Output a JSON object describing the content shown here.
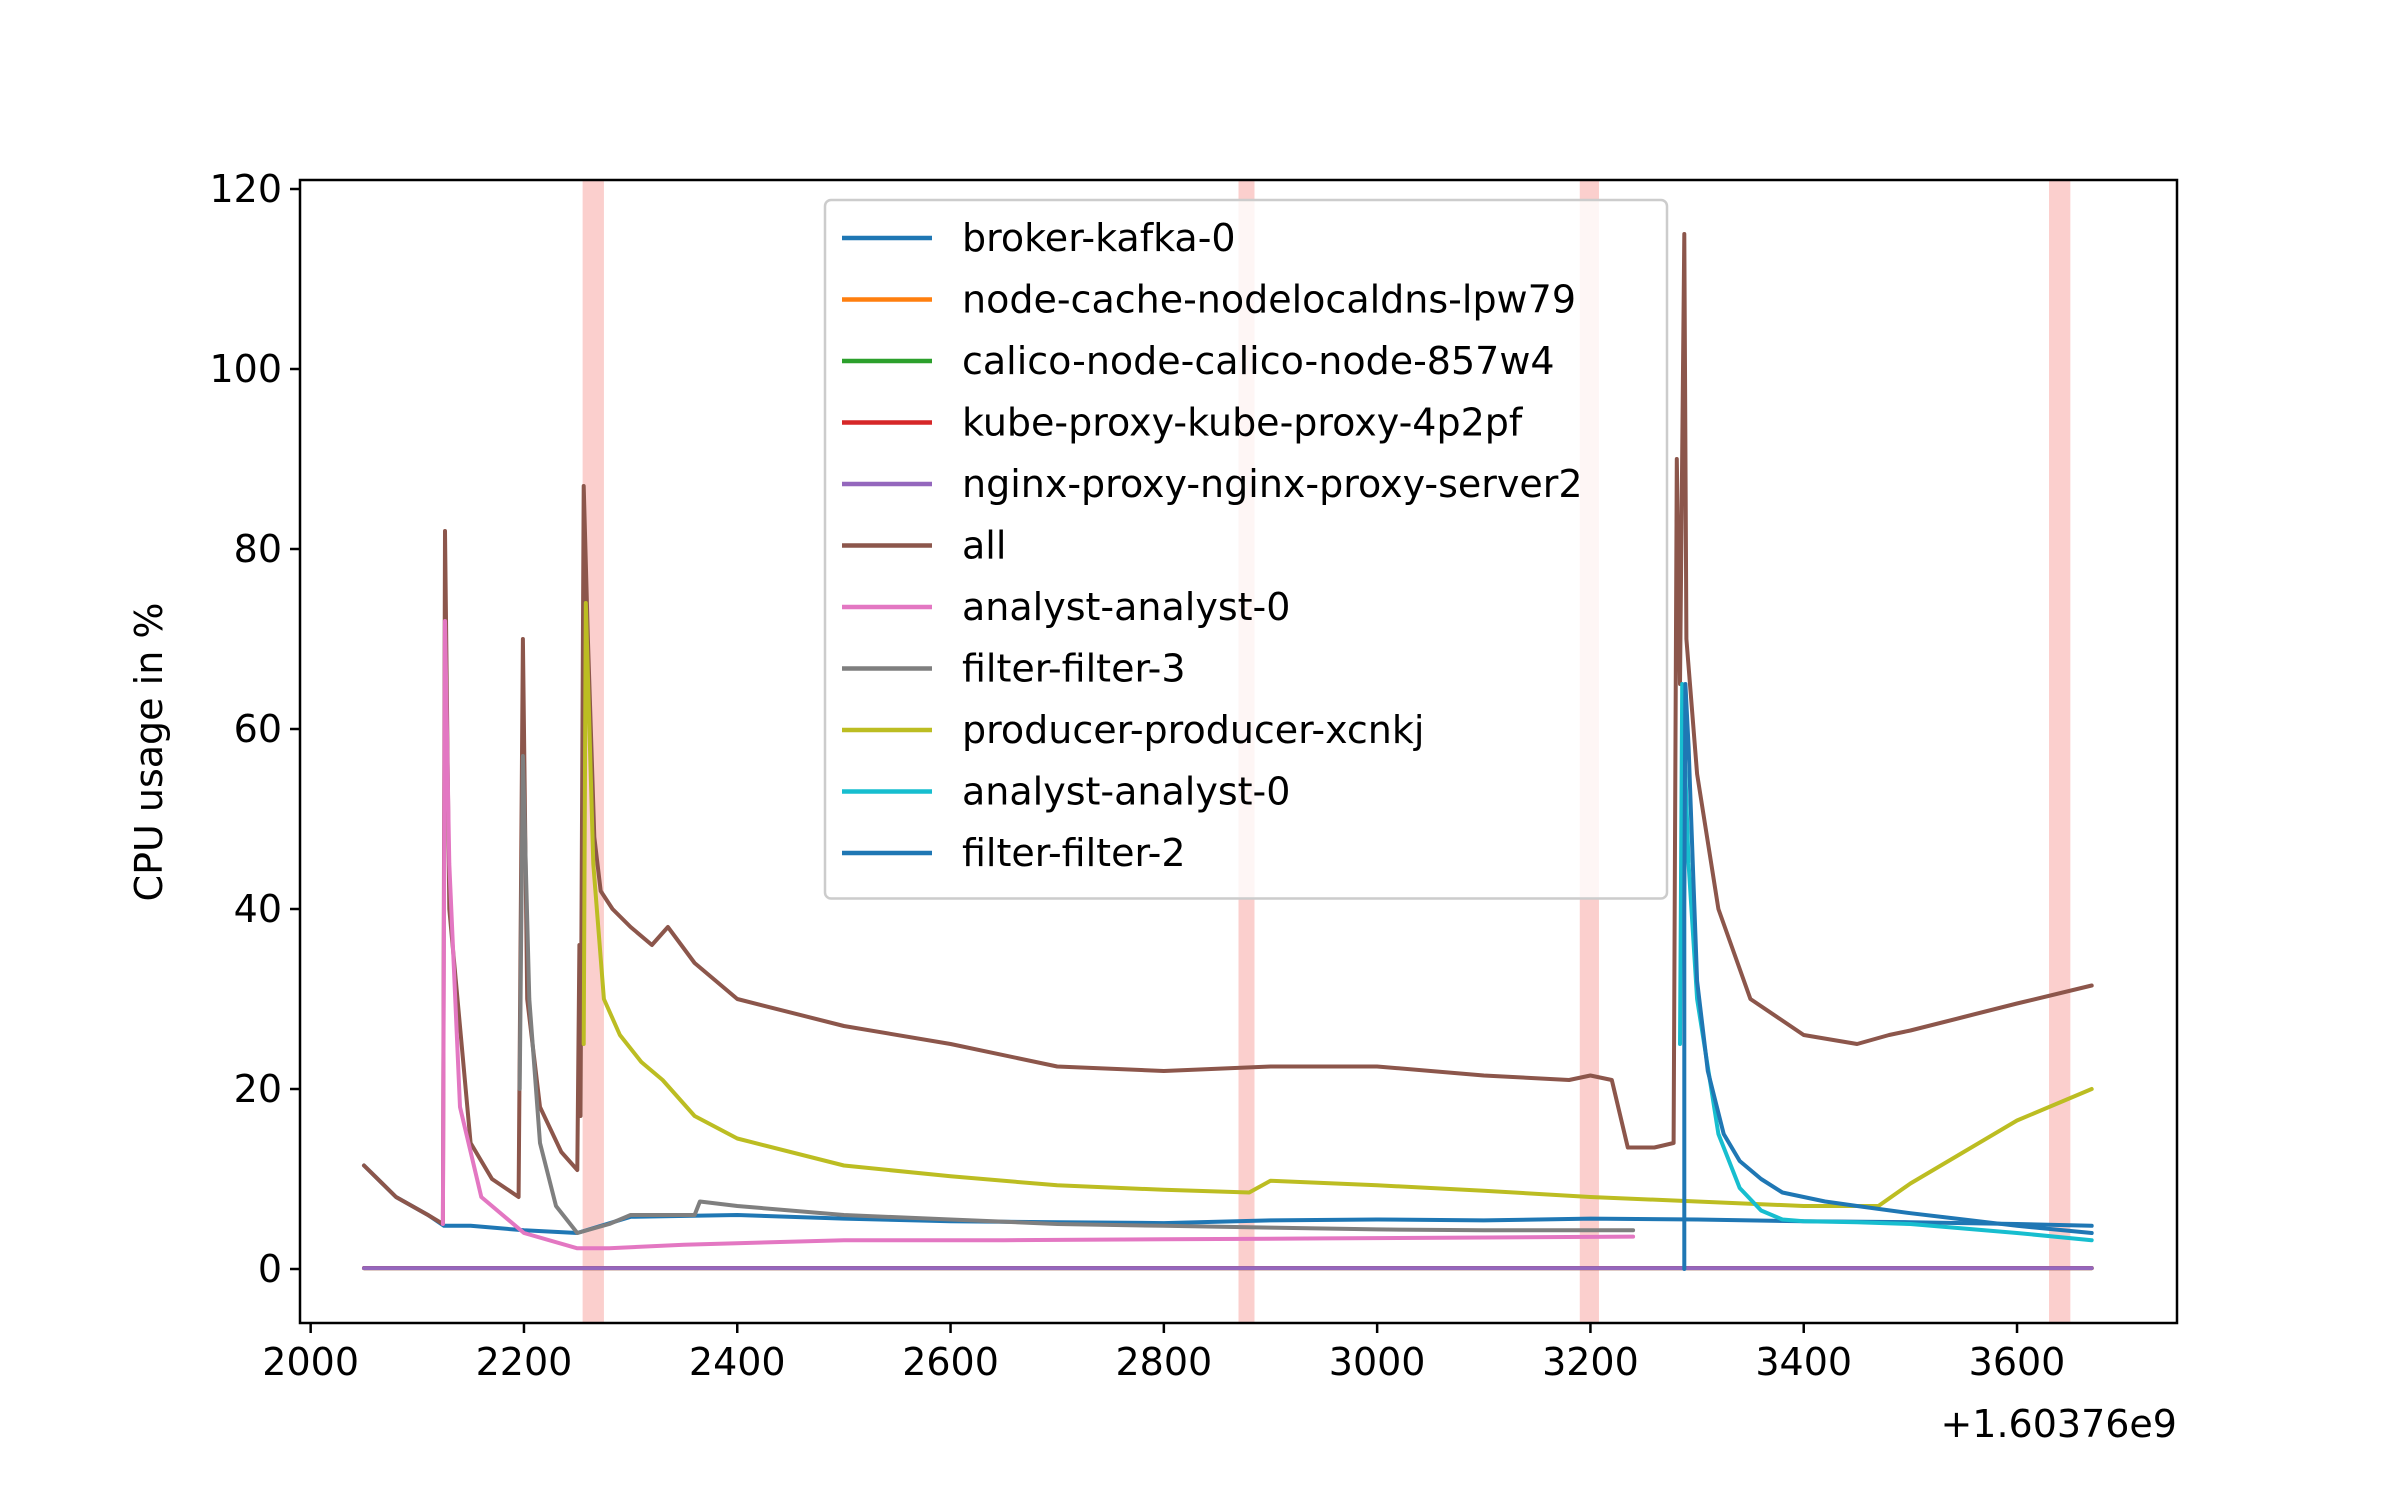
{
  "chart_data": {
    "type": "line",
    "xlabel": "",
    "ylabel": "CPU usage in %",
    "x_offset_label": "+1.60376e9",
    "xlim": [
      1990,
      3750
    ],
    "ylim": [
      -6,
      121
    ],
    "xticks": [
      2000,
      2200,
      2400,
      2600,
      2800,
      3000,
      3200,
      3400,
      3600
    ],
    "yticks": [
      0,
      20,
      40,
      60,
      80,
      100,
      120
    ],
    "grid": false,
    "legend_position": "top-center",
    "highlight_bands": [
      [
        2255,
        2275
      ],
      [
        2870,
        2885
      ],
      [
        3190,
        3208
      ],
      [
        3630,
        3650
      ]
    ],
    "highlight_color": "#f8a8a4",
    "series": [
      {
        "name": "broker-kafka-0",
        "color": "#1f77b4",
        "x": [
          2050,
          2080,
          2110,
          2125,
          2150,
          2200,
          2250,
          2300,
          2400,
          2500,
          2600,
          2700,
          2800,
          2900,
          3000,
          3100,
          3200,
          3300,
          3400,
          3500,
          3600,
          3670
        ],
        "y": [
          11.5,
          8,
          6,
          4.8,
          4.8,
          4.3,
          4,
          5.8,
          6,
          5.6,
          5.3,
          5.2,
          5.1,
          5.4,
          5.5,
          5.4,
          5.6,
          5.5,
          5.3,
          5.2,
          5,
          4.8
        ]
      },
      {
        "name": "node-cache-nodelocaldns-lpw79",
        "color": "#ff7f0e",
        "x": [
          2050,
          3670
        ],
        "y": [
          0.1,
          0.1
        ]
      },
      {
        "name": "calico-node-calico-node-857w4",
        "color": "#2ca02c",
        "x": [
          2050,
          3670
        ],
        "y": [
          0.1,
          0.1
        ]
      },
      {
        "name": "kube-proxy-kube-proxy-4p2pf",
        "color": "#d62728",
        "x": [
          2050,
          3670
        ],
        "y": [
          0.1,
          0.1
        ]
      },
      {
        "name": "nginx-proxy-nginx-proxy-server2",
        "color": "#9467bd",
        "x": [
          2050,
          3670
        ],
        "y": [
          0.1,
          0.1
        ]
      },
      {
        "name": "all",
        "color": "#8c564b",
        "x": [
          2050,
          2080,
          2110,
          2124,
          2126,
          2130,
          2150,
          2170,
          2195,
          2199,
          2203,
          2215,
          2235,
          2250,
          2252,
          2253,
          2256,
          2260,
          2266,
          2272,
          2283,
          2300,
          2320,
          2335,
          2360,
          2400,
          2500,
          2600,
          2700,
          2800,
          2900,
          3000,
          3100,
          3180,
          3200,
          3220,
          3235,
          3260,
          3278,
          3281,
          3284,
          3288,
          3290,
          3300,
          3320,
          3350,
          3400,
          3450,
          3480,
          3500,
          3550,
          3600,
          3670
        ],
        "y": [
          11.5,
          8,
          6,
          5,
          82,
          40,
          14,
          10,
          8,
          70,
          30,
          18,
          13,
          11,
          36,
          17,
          87,
          70,
          48,
          42,
          40,
          38,
          36,
          38,
          34,
          30,
          27,
          25,
          22.5,
          22,
          22.5,
          22.5,
          21.5,
          21,
          21.5,
          21,
          13.5,
          13.5,
          14,
          90,
          65,
          115,
          70,
          55,
          40,
          30,
          26,
          25,
          26,
          26.5,
          28,
          29.5,
          31.5
        ]
      },
      {
        "name": "analyst-analyst-0",
        "color": "#e377c2",
        "x": [
          2124,
          2126,
          2130,
          2140,
          2160,
          2200,
          2250,
          2280,
          2350,
          2500,
          2650,
          2800,
          2950,
          3100,
          3240
        ],
        "y": [
          5,
          72,
          45,
          18,
          8,
          4,
          2.3,
          2.3,
          2.7,
          3.2,
          3.2,
          3.3,
          3.4,
          3.5,
          3.6
        ]
      },
      {
        "name": "filter-filter-3",
        "color": "#7f7f7f",
        "x": [
          2196,
          2199,
          2205,
          2215,
          2230,
          2250,
          2280,
          2300,
          2360,
          2365,
          2400,
          2500,
          2600,
          2700,
          2800,
          2900,
          3000,
          3100,
          3240
        ],
        "y": [
          20,
          57,
          30,
          14,
          7,
          4,
          5,
          6,
          6,
          7.5,
          7,
          6,
          5.5,
          5,
          4.8,
          4.6,
          4.4,
          4.3,
          4.3
        ]
      },
      {
        "name": "producer-producer-xcnkj",
        "color": "#bcbd22",
        "x": [
          2256,
          2258,
          2265,
          2275,
          2290,
          2310,
          2330,
          2360,
          2400,
          2500,
          2600,
          2700,
          2800,
          2880,
          2900,
          3000,
          3100,
          3200,
          3300,
          3400,
          3470,
          3500,
          3550,
          3600,
          3670
        ],
        "y": [
          25,
          74,
          45,
          30,
          26,
          23,
          21,
          17,
          14.5,
          11.5,
          10.3,
          9.3,
          8.8,
          8.5,
          9.8,
          9.3,
          8.7,
          8,
          7.5,
          7,
          7,
          9.5,
          13,
          16.5,
          20
        ]
      },
      {
        "name": "analyst-analyst-0",
        "color": "#17becf",
        "x": [
          3284,
          3286,
          3292,
          3300,
          3320,
          3340,
          3360,
          3380,
          3400,
          3450,
          3500,
          3550,
          3600,
          3670
        ],
        "y": [
          25,
          65,
          45,
          30,
          15,
          9,
          6.5,
          5.5,
          5.3,
          5.2,
          5,
          4.5,
          4,
          3.2
        ]
      },
      {
        "name": "filter-filter-2",
        "color": "#1f77b4",
        "x": [
          3288,
          3288,
          3289,
          3292,
          3296,
          3300,
          3310,
          3325,
          3340,
          3360,
          3380,
          3400,
          3420,
          3450,
          3500,
          3550,
          3600,
          3670
        ],
        "y": [
          0,
          40,
          65,
          58,
          45,
          32,
          22,
          15,
          12,
          10,
          8.5,
          8,
          7.5,
          7,
          6.2,
          5.5,
          4.8,
          4
        ]
      }
    ]
  }
}
